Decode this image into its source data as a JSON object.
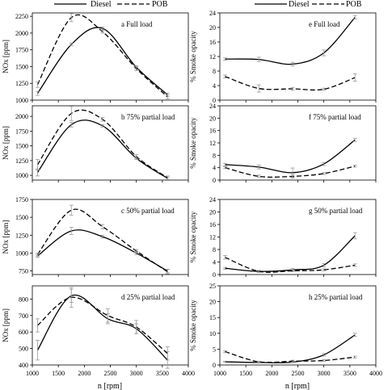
{
  "legend": {
    "left": {
      "diesel": "Diesel",
      "pob": "POB"
    },
    "right": {
      "diesel": "Diesel",
      "pob": "POB"
    }
  },
  "xlabels": {
    "left": "n [rpm]",
    "right": "n [rpm]"
  },
  "chart_data": [
    {
      "id": "a",
      "type": "line",
      "title": "a Full load",
      "ylabel": "NOx [ppm]",
      "xlim": [
        1000,
        4000
      ],
      "ylim": [
        1000,
        2300
      ],
      "yticks": [
        1000,
        1250,
        1500,
        1750,
        2000,
        2250
      ],
      "xticks": [],
      "x": [
        1100,
        1750,
        2350,
        3000,
        3600
      ],
      "series": [
        {
          "name": "Diesel",
          "style": "solid",
          "values": [
            1100,
            1830,
            2070,
            1490,
            1080
          ],
          "err": [
            30,
            20,
            20,
            25,
            25
          ]
        },
        {
          "name": "POB",
          "style": "dashed",
          "values": [
            1230,
            2230,
            2020,
            1470,
            1050
          ],
          "err": [
            40,
            60,
            20,
            30,
            30
          ]
        }
      ]
    },
    {
      "id": "b",
      "type": "line",
      "title": "b 75% partial load",
      "ylabel": "NOx [ppm]",
      "xlim": [
        1000,
        4000
      ],
      "ylim": [
        920,
        2180
      ],
      "yticks": [
        1000,
        1250,
        1500,
        1750,
        2000
      ],
      "xticks": [],
      "x": [
        1100,
        1750,
        2350,
        3000,
        3600
      ],
      "series": [
        {
          "name": "Diesel",
          "style": "solid",
          "values": [
            1050,
            1860,
            1840,
            1290,
            950
          ],
          "err": [
            60,
            40,
            20,
            20,
            20
          ]
        },
        {
          "name": "POB",
          "style": "dashed",
          "values": [
            1180,
            2050,
            1950,
            1320,
            960
          ],
          "err": [
            90,
            120,
            30,
            30,
            30
          ]
        }
      ]
    },
    {
      "id": "c",
      "type": "line",
      "title": "c 50% partial load",
      "ylabel": "NOx [ppm]",
      "xlim": [
        1000,
        4000
      ],
      "ylim": [
        700,
        1750
      ],
      "yticks": [
        750,
        1000,
        1250,
        1500,
        1750
      ],
      "xticks": [],
      "x": [
        1100,
        1750,
        2350,
        3000,
        3600
      ],
      "series": [
        {
          "name": "Diesel",
          "style": "solid",
          "values": [
            960,
            1310,
            1230,
            1000,
            750
          ],
          "err": [
            20,
            50,
            20,
            20,
            25
          ]
        },
        {
          "name": "POB",
          "style": "dashed",
          "values": [
            980,
            1600,
            1370,
            1030,
            740
          ],
          "err": [
            20,
            70,
            30,
            20,
            30
          ]
        }
      ]
    },
    {
      "id": "d",
      "type": "line",
      "title": "d 25% partial load",
      "ylabel": "NOx [ppm]",
      "xlim": [
        1000,
        4000
      ],
      "ylim": [
        400,
        880
      ],
      "yticks": [
        400,
        500,
        600,
        700,
        800
      ],
      "xticks": [
        1000,
        1500,
        2000,
        2500,
        3000,
        3500,
        4000
      ],
      "x": [
        1100,
        1750,
        2450,
        3000,
        3600
      ],
      "series": [
        {
          "name": "Diesel",
          "style": "solid",
          "values": [
            490,
            820,
            680,
            620,
            430
          ],
          "err": [
            60,
            40,
            30,
            30,
            50
          ]
        },
        {
          "name": "POB",
          "style": "dashed",
          "values": [
            640,
            810,
            700,
            630,
            470
          ],
          "err": [
            40,
            60,
            40,
            40,
            40
          ]
        }
      ]
    },
    {
      "id": "e",
      "type": "line",
      "title": "e Full load",
      "ylabel": "% Smoke opacity",
      "xlim": [
        1000,
        4000
      ],
      "ylim": [
        0,
        24
      ],
      "yticks": [
        0,
        4,
        8,
        12,
        16,
        20,
        24
      ],
      "xticks": [],
      "x": [
        1100,
        1750,
        2400,
        3000,
        3600
      ],
      "series": [
        {
          "name": "Diesel",
          "style": "solid",
          "values": [
            11.3,
            11.2,
            9.9,
            13.0,
            22.8
          ],
          "err": [
            0.3,
            0.6,
            0.5,
            0.8,
            0.5
          ]
        },
        {
          "name": "POB",
          "style": "dashed",
          "values": [
            6.5,
            3.2,
            3.1,
            3.0,
            6.2
          ],
          "err": [
            0.4,
            1.0,
            0.4,
            0.3,
            1.0
          ]
        }
      ]
    },
    {
      "id": "f",
      "type": "line",
      "title": "f 75% partial load",
      "ylabel": "% Smoke opacity",
      "xlim": [
        1000,
        4000
      ],
      "ylim": [
        0,
        24
      ],
      "yticks": [
        0,
        4,
        8,
        12,
        16,
        20,
        24
      ],
      "xticks": [],
      "x": [
        1100,
        1750,
        2400,
        3000,
        3600
      ],
      "series": [
        {
          "name": "Diesel",
          "style": "solid",
          "values": [
            5.0,
            4.2,
            2.4,
            5.2,
            13.0
          ],
          "err": [
            0.4,
            0.6,
            1.5,
            0.5,
            0.5
          ]
        },
        {
          "name": "POB",
          "style": "dashed",
          "values": [
            4.0,
            1.2,
            1.2,
            2.1,
            4.5
          ],
          "err": [
            0.3,
            0.4,
            0.6,
            0.3,
            0.3
          ]
        }
      ]
    },
    {
      "id": "g",
      "type": "line",
      "title": "g 50% partial load",
      "ylabel": "% Smoke opacity",
      "xlim": [
        1000,
        4000
      ],
      "ylim": [
        0,
        24
      ],
      "yticks": [
        0,
        4,
        8,
        12,
        16,
        20,
        24
      ],
      "xticks": [],
      "x": [
        1100,
        1750,
        2400,
        3000,
        3600
      ],
      "series": [
        {
          "name": "Diesel",
          "style": "solid",
          "values": [
            2.0,
            1.0,
            1.5,
            3.0,
            12.4
          ],
          "err": [
            0.3,
            0.3,
            0.4,
            0.5,
            1.0
          ]
        },
        {
          "name": "POB",
          "style": "dashed",
          "values": [
            5.5,
            1.0,
            1.2,
            1.5,
            3.0
          ],
          "err": [
            0.6,
            0.3,
            0.3,
            0.3,
            0.4
          ]
        }
      ]
    },
    {
      "id": "h",
      "type": "line",
      "title": "h 25% partial load",
      "ylabel": "% Smoke opacity",
      "xlim": [
        1000,
        4000
      ],
      "ylim": [
        0,
        25
      ],
      "yticks": [
        0,
        5,
        10,
        15,
        20,
        25
      ],
      "xticks": [
        1000,
        1500,
        2000,
        2500,
        3000,
        3500,
        4000
      ],
      "x": [
        1100,
        1750,
        2400,
        3000,
        3600
      ],
      "series": [
        {
          "name": "Diesel",
          "style": "solid",
          "values": [
            1.0,
            0.8,
            0.9,
            3.2,
            9.5
          ],
          "err": [
            0.2,
            0.2,
            0.2,
            0.4,
            0.5
          ]
        },
        {
          "name": "POB",
          "style": "dashed",
          "values": [
            4.2,
            1.0,
            1.2,
            1.4,
            2.5
          ],
          "err": [
            0.3,
            0.2,
            0.3,
            0.3,
            0.3
          ]
        }
      ]
    }
  ]
}
